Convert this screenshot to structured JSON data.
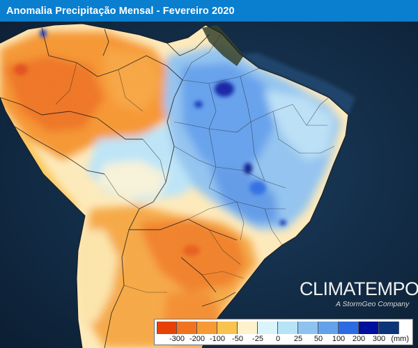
{
  "title": "Anomalia Precipitação Mensal - Fevereiro 2020",
  "brand": {
    "name": "CLIMATEMPO",
    "subtitle": "A StormGeo Company"
  },
  "legend": {
    "unit": "(mm)",
    "colors": [
      "#e84107",
      "#f2731f",
      "#f79a34",
      "#f9c34f",
      "#fdf2cc",
      "#d9f5fb",
      "#b7e3f7",
      "#8ec3f0",
      "#62a2ea",
      "#2b6be3",
      "#00109e",
      "#0b3579"
    ],
    "ticks": [
      "-300",
      "-200",
      "-100",
      "-50",
      "-25",
      "0",
      "25",
      "50",
      "100",
      "200",
      "300"
    ]
  },
  "palette": {
    "ocean": "#0f2a45",
    "title_bar": "#0a7fd0"
  }
}
